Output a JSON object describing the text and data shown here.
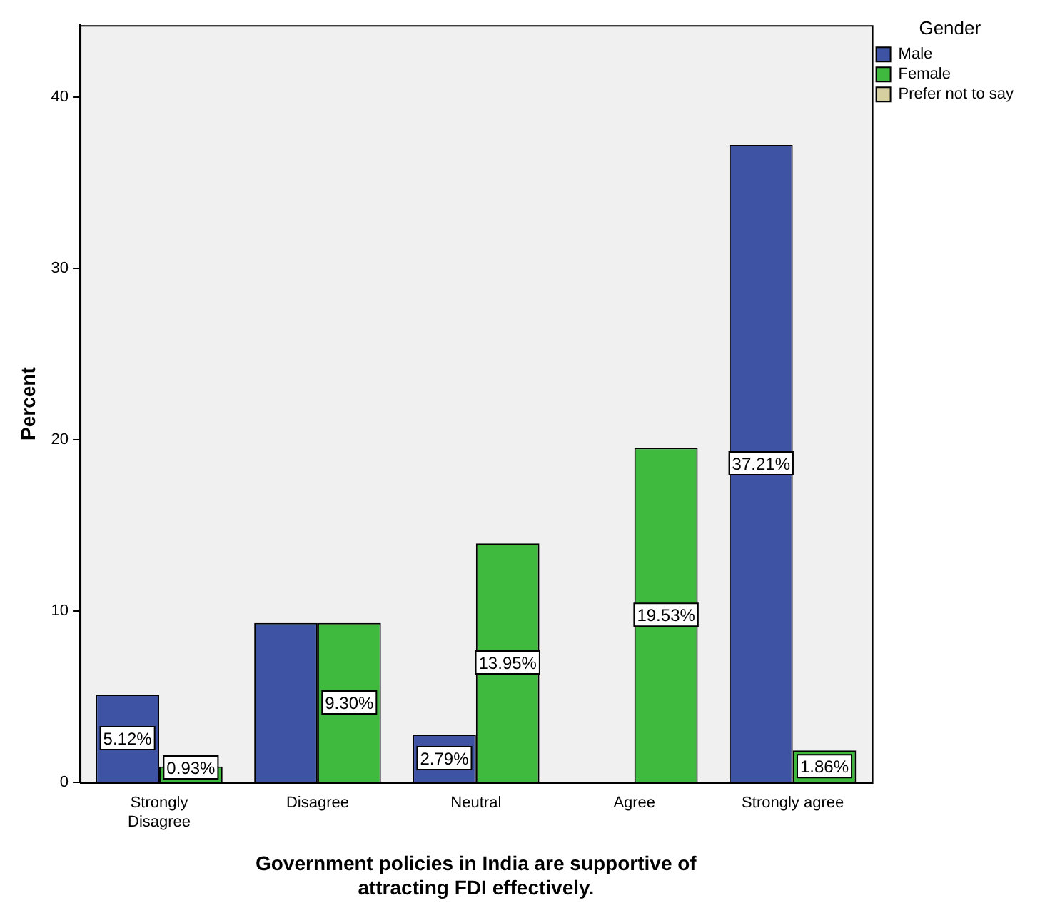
{
  "chart_data": {
    "type": "bar",
    "xlabel": "Government policies in India are supportive of attracting FDI effectively.",
    "ylabel": "Percent",
    "legend_title": "Gender",
    "legend": "top right",
    "grid": false,
    "categories": [
      "Strongly Disagree",
      "Disagree",
      "Neutral",
      "Agree",
      "Strongly agree"
    ],
    "ylim": [
      0,
      44.2
    ],
    "yticks": [
      0,
      10,
      20,
      30,
      40
    ],
    "series": [
      {
        "name": "Male",
        "color": "#3e53a4",
        "values": [
          5.12,
          9.3,
          2.79,
          null,
          37.21
        ],
        "value_labels": [
          "5.12%",
          null,
          "2.79%",
          null,
          "37.21%"
        ]
      },
      {
        "name": "Female",
        "color": "#3fba3f",
        "values": [
          0.93,
          9.3,
          13.95,
          19.53,
          1.86
        ],
        "value_labels": [
          "0.93%",
          "9.30%",
          "13.95%",
          "19.53%",
          "1.86%"
        ]
      },
      {
        "name": "Prefer not to say",
        "color": "#d6cfa0",
        "values": [
          null,
          null,
          null,
          null,
          null
        ]
      }
    ]
  }
}
